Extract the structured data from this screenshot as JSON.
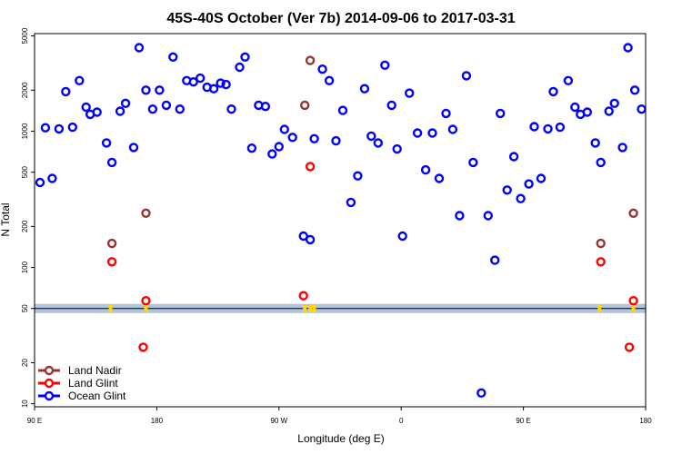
{
  "chart_data": {
    "type": "scatter",
    "title": "45S-40S October (Ver 7b)   2014-09-06 to 2017-03-31",
    "xlabel": "Longitude (deg E)",
    "ylabel": "N Total",
    "x_scale": "longitude",
    "y_scale": "log",
    "xlim": [
      90,
      540
    ],
    "ylim": [
      9.5,
      5200
    ],
    "x_ticks": [
      {
        "value": 90,
        "label": "90 E"
      },
      {
        "value": 180,
        "label": "180"
      },
      {
        "value": 270,
        "label": "90 W"
      },
      {
        "value": 360,
        "label": "0"
      },
      {
        "value": 450,
        "label": "90 E"
      },
      {
        "value": 540,
        "label": "180"
      }
    ],
    "y_ticks": [
      {
        "value": 10,
        "label": "10"
      },
      {
        "value": 20,
        "label": "20"
      },
      {
        "value": 50,
        "label": "50"
      },
      {
        "value": 100,
        "label": "100"
      },
      {
        "value": 200,
        "label": "200"
      },
      {
        "value": 500,
        "label": "500"
      },
      {
        "value": 1000,
        "label": "1000"
      },
      {
        "value": 2000,
        "label": "2000"
      },
      {
        "value": 5000,
        "label": "5000"
      }
    ],
    "reference_band": {
      "y": 50,
      "color": "#b0c4de"
    },
    "legend_position": "bottom-left",
    "series": [
      {
        "name": "Land Nadir",
        "color": "#993333",
        "points": [
          [
            147,
            150
          ],
          [
            172,
            250
          ],
          [
            289,
            1550
          ],
          [
            293,
            3300
          ],
          [
            507,
            150
          ],
          [
            531,
            250
          ]
        ]
      },
      {
        "name": "Land Glint",
        "color": "#ff0000",
        "points": [
          [
            147,
            110
          ],
          [
            170,
            26
          ],
          [
            172,
            57
          ],
          [
            288,
            62
          ],
          [
            293,
            550
          ],
          [
            507,
            110
          ],
          [
            528,
            26
          ],
          [
            531,
            57
          ]
        ]
      },
      {
        "name": "Ocean Glint",
        "color": "#0000ff",
        "points": [
          [
            94,
            420
          ],
          [
            98,
            1060
          ],
          [
            103,
            450
          ],
          [
            108,
            1040
          ],
          [
            113,
            1950
          ],
          [
            118,
            1070
          ],
          [
            123,
            2350
          ],
          [
            128,
            1500
          ],
          [
            131,
            1330
          ],
          [
            136,
            1380
          ],
          [
            143,
            820
          ],
          [
            147,
            590
          ],
          [
            153,
            1400
          ],
          [
            157,
            1600
          ],
          [
            163,
            760
          ],
          [
            167,
            4100
          ],
          [
            172,
            2000
          ],
          [
            177,
            1450
          ],
          [
            182,
            2000
          ],
          [
            187,
            1550
          ],
          [
            192,
            3500
          ],
          [
            197,
            1450
          ],
          [
            202,
            2350
          ],
          [
            207,
            2300
          ],
          [
            212,
            2450
          ],
          [
            217,
            2100
          ],
          [
            222,
            2050
          ],
          [
            227,
            2250
          ],
          [
            231,
            2200
          ],
          [
            235,
            1450
          ],
          [
            241,
            2950
          ],
          [
            245,
            3500
          ],
          [
            250,
            750
          ],
          [
            255,
            1550
          ],
          [
            260,
            1520
          ],
          [
            265,
            680
          ],
          [
            270,
            770
          ],
          [
            274,
            1030
          ],
          [
            280,
            900
          ],
          [
            288,
            170
          ],
          [
            293,
            160
          ],
          [
            296,
            880
          ],
          [
            302,
            2850
          ],
          [
            307,
            2350
          ],
          [
            312,
            850
          ],
          [
            317,
            1420
          ],
          [
            323,
            300
          ],
          [
            328,
            470
          ],
          [
            333,
            2050
          ],
          [
            338,
            920
          ],
          [
            343,
            820
          ],
          [
            348,
            3050
          ],
          [
            353,
            1550
          ],
          [
            357,
            740
          ],
          [
            361,
            170
          ],
          [
            366,
            1900
          ],
          [
            372,
            970
          ],
          [
            378,
            520
          ],
          [
            383,
            970
          ],
          [
            388,
            450
          ],
          [
            393,
            1350
          ],
          [
            398,
            1030
          ],
          [
            403,
            240
          ],
          [
            408,
            2550
          ],
          [
            413,
            590
          ],
          [
            419,
            12
          ],
          [
            424,
            240
          ],
          [
            429,
            113
          ],
          [
            433,
            1350
          ],
          [
            438,
            370
          ],
          [
            443,
            650
          ],
          [
            448,
            320
          ],
          [
            454,
            410
          ],
          [
            458,
            1080
          ],
          [
            463,
            450
          ],
          [
            468,
            1040
          ],
          [
            472,
            1950
          ],
          [
            477,
            1070
          ],
          [
            483,
            2350
          ],
          [
            488,
            1500
          ],
          [
            492,
            1330
          ],
          [
            497,
            1380
          ],
          [
            503,
            820
          ],
          [
            507,
            590
          ],
          [
            513,
            1400
          ],
          [
            517,
            1600
          ],
          [
            523,
            760
          ],
          [
            527,
            4100
          ],
          [
            532,
            2000
          ],
          [
            537,
            1450
          ]
        ]
      }
    ],
    "band_markers_x": [
      146,
      172,
      289,
      293,
      296,
      506,
      531
    ]
  }
}
